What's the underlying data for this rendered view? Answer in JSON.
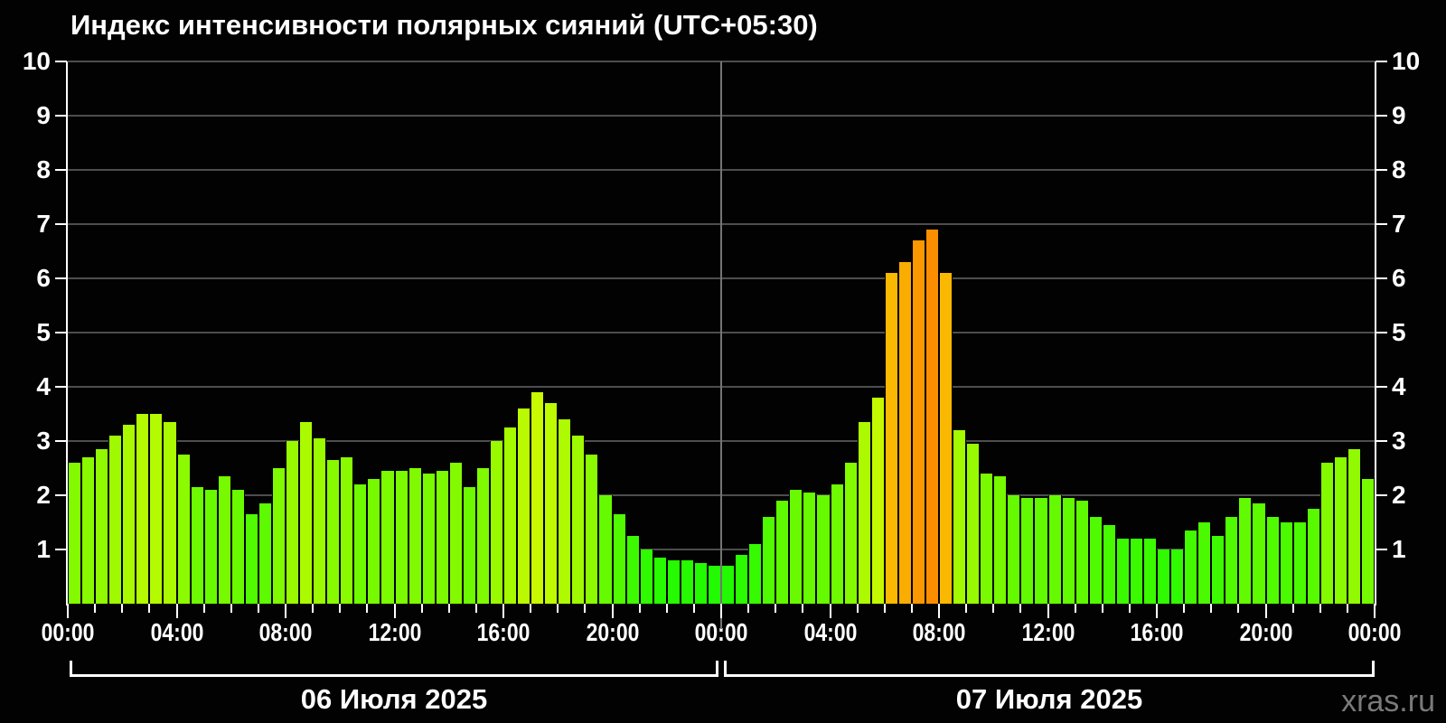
{
  "title": "Индекс интенсивности полярных сияний (UTC+05:30)",
  "watermark": "xras.ru",
  "chart_data": {
    "type": "bar",
    "title": "Индекс интенсивности полярных сияний (UTC+05:30)",
    "ylim": [
      0,
      10
    ],
    "grid": true,
    "background": "#000000",
    "interval_minutes": 30,
    "y_ticks": [
      1,
      2,
      3,
      4,
      5,
      6,
      7,
      8,
      9,
      10
    ],
    "x_tick_labels": [
      "00:00",
      "04:00",
      "08:00",
      "12:00",
      "16:00",
      "20:00",
      "00:00",
      "04:00",
      "08:00",
      "12:00",
      "16:00",
      "20:00",
      "00:00"
    ],
    "x_tick_hours": [
      0,
      4,
      8,
      12,
      16,
      20,
      24,
      28,
      32,
      36,
      40,
      44,
      48
    ],
    "color_scale": {
      "low_green": "#22e400",
      "mid_yellow_green": "#aaf400",
      "high_amber": "#fcc800",
      "peak_orange": "#fb9a00",
      "gridline": "#4d4d4d",
      "axis": "#ffffff",
      "day_separator": "#747474"
    },
    "days": [
      {
        "date": "06 Июля 2025",
        "values": [
          2.6,
          2.7,
          2.85,
          3.1,
          3.3,
          3.5,
          3.5,
          3.35,
          2.75,
          2.15,
          2.1,
          2.35,
          2.1,
          1.65,
          1.85,
          2.5,
          3.0,
          3.35,
          3.05,
          2.65,
          2.7,
          2.2,
          2.3,
          2.45,
          2.45,
          2.5,
          2.4,
          2.45,
          2.6,
          2.15,
          2.5,
          3.0,
          3.25,
          3.6,
          3.9,
          3.7,
          3.4,
          3.1,
          2.75,
          2.0,
          1.65,
          1.25,
          1.0,
          0.85,
          0.8,
          0.8,
          0.75,
          0.7
        ]
      },
      {
        "date": "07 Июля 2025",
        "values": [
          0.7,
          0.9,
          1.1,
          1.6,
          1.9,
          2.1,
          2.05,
          2.0,
          2.2,
          2.6,
          3.35,
          3.8,
          6.1,
          6.3,
          6.7,
          6.9,
          6.1,
          3.2,
          2.95,
          2.4,
          2.35,
          2.0,
          1.95,
          1.95,
          2.0,
          1.95,
          1.9,
          1.6,
          1.45,
          1.2,
          1.2,
          1.2,
          1.0,
          1.0,
          1.35,
          1.5,
          1.25,
          1.6,
          1.95,
          1.85,
          1.6,
          1.5,
          1.5,
          1.75,
          2.6,
          2.7,
          2.85,
          2.3
        ]
      }
    ]
  }
}
